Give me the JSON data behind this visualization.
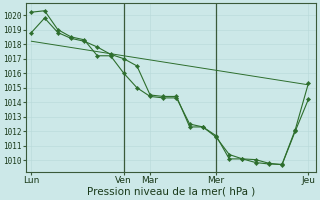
{
  "background_color": "#cce8e8",
  "grid_color_minor": "#b8d8d8",
  "grid_color_major": "#99c4c4",
  "line_color": "#2d6e2d",
  "marker_color": "#2d6e2d",
  "xlabel_text": "Pression niveau de la mer( hPa )",
  "yticks": [
    1010,
    1011,
    1012,
    1013,
    1014,
    1015,
    1016,
    1017,
    1018,
    1019,
    1020
  ],
  "ylim": [
    1009.2,
    1020.8
  ],
  "xtick_labels": [
    "Lun",
    "Ven",
    "Mar",
    "Mer",
    "Jeu"
  ],
  "xtick_positions": [
    0,
    35,
    45,
    70,
    105
  ],
  "xlim": [
    -2,
    108
  ],
  "smooth_line_x": [
    0,
    105
  ],
  "smooth_line_y": [
    1018.2,
    1015.2
  ],
  "series1_x": [
    0,
    5,
    10,
    15,
    20,
    25,
    30,
    35,
    40,
    45,
    50,
    55,
    60,
    65,
    70,
    75,
    80,
    85,
    90,
    95,
    100,
    105
  ],
  "series1_y": [
    1020.2,
    1020.3,
    1019.0,
    1018.5,
    1018.3,
    1017.2,
    1017.2,
    1016.0,
    1015.0,
    1014.4,
    1014.3,
    1014.3,
    1012.5,
    1012.3,
    1011.7,
    1010.1,
    1010.1,
    1010.05,
    1009.8,
    1009.7,
    1012.0,
    1014.2
  ],
  "series2_x": [
    0,
    5,
    10,
    15,
    20,
    25,
    30,
    35,
    40,
    45,
    50,
    55,
    60,
    65,
    70,
    75,
    80,
    85,
    90,
    95,
    100,
    105
  ],
  "series2_y": [
    1018.8,
    1019.8,
    1018.8,
    1018.4,
    1018.2,
    1017.8,
    1017.3,
    1017.0,
    1016.5,
    1014.5,
    1014.4,
    1014.4,
    1012.3,
    1012.3,
    1011.6,
    1010.4,
    1010.1,
    1009.85,
    1009.75,
    1009.72,
    1012.1,
    1015.3
  ],
  "vline_positions": [
    35,
    70
  ],
  "fontsize_yticks": 5.5,
  "fontsize_xticks": 6.5,
  "fontsize_xlabel": 7.5
}
